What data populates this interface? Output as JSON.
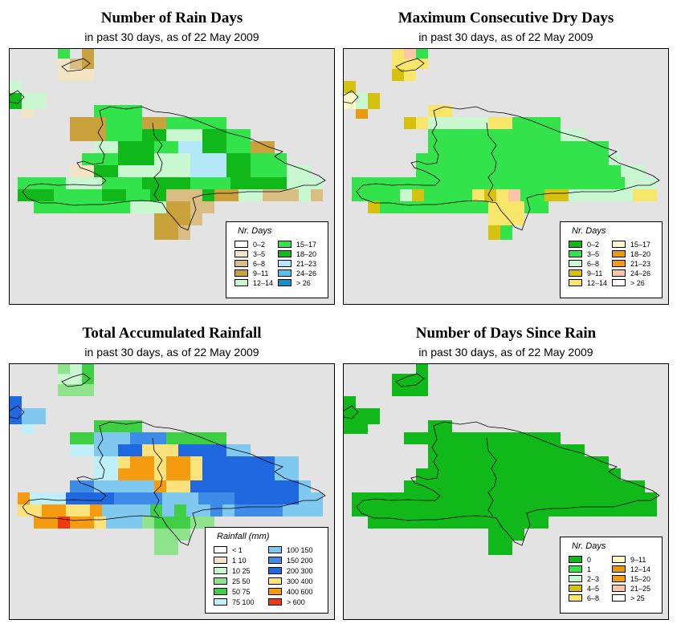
{
  "panels": [
    {
      "title": "Number of Rain Days",
      "subtitle": "in past 30 days, as of  22 May 2009",
      "legend": {
        "title": "Nr. Days",
        "items": [
          {
            "label": "0–2",
            "color": "#ffffff"
          },
          {
            "label": "3–5",
            "color": "#f3e4c4"
          },
          {
            "label": "6–8",
            "color": "#d9bd82"
          },
          {
            "label": "9–11",
            "color": "#c9a23c"
          },
          {
            "label": "12–14",
            "color": "#c8f7d0"
          },
          {
            "label": "15–17",
            "color": "#33e34b"
          },
          {
            "label": "18–20",
            "color": "#10b81a"
          },
          {
            "label": "21–23",
            "color": "#b2e8f7"
          },
          {
            "label": "24–26",
            "color": "#55c2ee"
          },
          {
            "label": "> 26",
            "color": "#0f93cf"
          }
        ]
      }
    },
    {
      "title": "Maximum Consecutive Dry Days",
      "subtitle": "in past 30 days, as of  22 May 2009",
      "legend": {
        "title": "Nr. Days",
        "items": [
          {
            "label": "0–2",
            "color": "#10b81a"
          },
          {
            "label": "3–5",
            "color": "#33e34b"
          },
          {
            "label": "6–8",
            "color": "#c8f7d0"
          },
          {
            "label": "9–11",
            "color": "#d6c20e"
          },
          {
            "label": "12–14",
            "color": "#f8e66a"
          },
          {
            "label": "15–17",
            "color": "#fdf8c7"
          },
          {
            "label": "18–20",
            "color": "#e9990b"
          },
          {
            "label": "21–23",
            "color": "#f59b10"
          },
          {
            "label": "24–26",
            "color": "#f9c7a8"
          },
          {
            "label": "> 26",
            "color": "#ffffff"
          }
        ]
      }
    },
    {
      "title": "Total Accumulated Rainfall",
      "subtitle": "in past 30 days, as of  22 May 2009",
      "legend": {
        "title": "Rainfall (mm)",
        "items": [
          {
            "label": "< 1",
            "color": "#ffffff"
          },
          {
            "label": "1    10",
            "color": "#f3e4c4"
          },
          {
            "label": "10    25",
            "color": "#c8f7d0"
          },
          {
            "label": "25    50",
            "color": "#8fe38c"
          },
          {
            "label": "50    75",
            "color": "#3fcf45"
          },
          {
            "label": "75    100",
            "color": "#bfeff8"
          },
          {
            "label": "100  150",
            "color": "#7fc8f0"
          },
          {
            "label": "150  200",
            "color": "#3d8ce8"
          },
          {
            "label": "200  300",
            "color": "#1f68e0"
          },
          {
            "label": "300  400",
            "color": "#fbe27a"
          },
          {
            "label": "400  600",
            "color": "#f59b10"
          },
          {
            "label": "> 600",
            "color": "#ee3a14"
          }
        ]
      }
    },
    {
      "title": "Number of Days Since Rain",
      "subtitle": "in past 30 days, as of  22 May 2009",
      "legend": {
        "title": "Nr. Days",
        "items": [
          {
            "label": "0",
            "color": "#10b81a"
          },
          {
            "label": "1",
            "color": "#33e34b"
          },
          {
            "label": "2–3",
            "color": "#c8f7d0"
          },
          {
            "label": "4–5",
            "color": "#d6c20e"
          },
          {
            "label": "6–8",
            "color": "#f8e66a"
          },
          {
            "label": "9–11",
            "color": "#fdf8c7"
          },
          {
            "label": "12–14",
            "color": "#e9990b"
          },
          {
            "label": "15–20",
            "color": "#f59b10"
          },
          {
            "label": "21–25",
            "color": "#f9c7a8"
          },
          {
            "label": "> 25",
            "color": "#ffffff"
          }
        ]
      }
    }
  ]
}
